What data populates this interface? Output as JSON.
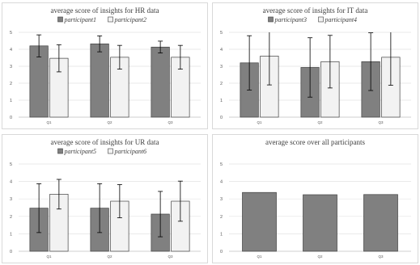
{
  "chart_data": [
    {
      "type": "bar",
      "title": "average  score of insights for HR data",
      "categories": [
        "Q1",
        "Q2",
        "Q3"
      ],
      "series": [
        {
          "name": "participant1",
          "color": "#808080",
          "values": [
            4.2,
            4.32,
            4.13
          ],
          "errors": [
            0.65,
            0.47,
            0.35
          ]
        },
        {
          "name": "participant2",
          "color": "#f2f2f2",
          "values": [
            3.47,
            3.53,
            3.53
          ],
          "errors": [
            0.8,
            0.7,
            0.7
          ]
        }
      ],
      "ylim": [
        0,
        5
      ],
      "yticks": [
        0,
        1,
        2,
        3,
        4,
        5
      ],
      "legend": "top",
      "grid": true
    },
    {
      "type": "bar",
      "title": "average  score of insights for IT data",
      "categories": [
        "Q1",
        "Q2",
        "Q3"
      ],
      "series": [
        {
          "name": "participant3",
          "color": "#808080",
          "values": [
            3.2,
            2.93,
            3.27
          ],
          "errors": [
            1.6,
            1.75,
            1.7
          ]
        },
        {
          "name": "participant4",
          "color": "#f2f2f2",
          "values": [
            3.6,
            3.27,
            3.53
          ],
          "errors": [
            1.7,
            1.55,
            1.65
          ]
        }
      ],
      "ylim": [
        0,
        5
      ],
      "yticks": [
        0,
        1,
        2,
        3,
        4,
        5
      ],
      "legend": "top",
      "grid": true
    },
    {
      "type": "bar",
      "title": "average  score of insights for UR data",
      "categories": [
        "Q1",
        "Q2",
        "Q3"
      ],
      "series": [
        {
          "name": "participant5",
          "color": "#808080",
          "values": [
            2.47,
            2.47,
            2.13
          ],
          "errors": [
            1.4,
            1.4,
            1.3
          ]
        },
        {
          "name": "participant6",
          "color": "#f2f2f2",
          "values": [
            3.27,
            2.87,
            2.87
          ],
          "errors": [
            0.85,
            0.95,
            1.15
          ]
        }
      ],
      "ylim": [
        0,
        5
      ],
      "yticks": [
        0,
        1,
        2,
        3,
        4,
        5
      ],
      "legend": "top",
      "grid": true
    },
    {
      "type": "bar",
      "title": "average  score over all participants",
      "categories": [
        "Q1",
        "Q2",
        "Q3"
      ],
      "series": [
        {
          "color": "#808080",
          "values": [
            3.37,
            3.24,
            3.25
          ]
        }
      ],
      "ylim": [
        0,
        5
      ],
      "yticks": [
        0,
        1,
        2,
        3,
        4,
        5
      ],
      "legend": "none",
      "grid": true
    }
  ]
}
